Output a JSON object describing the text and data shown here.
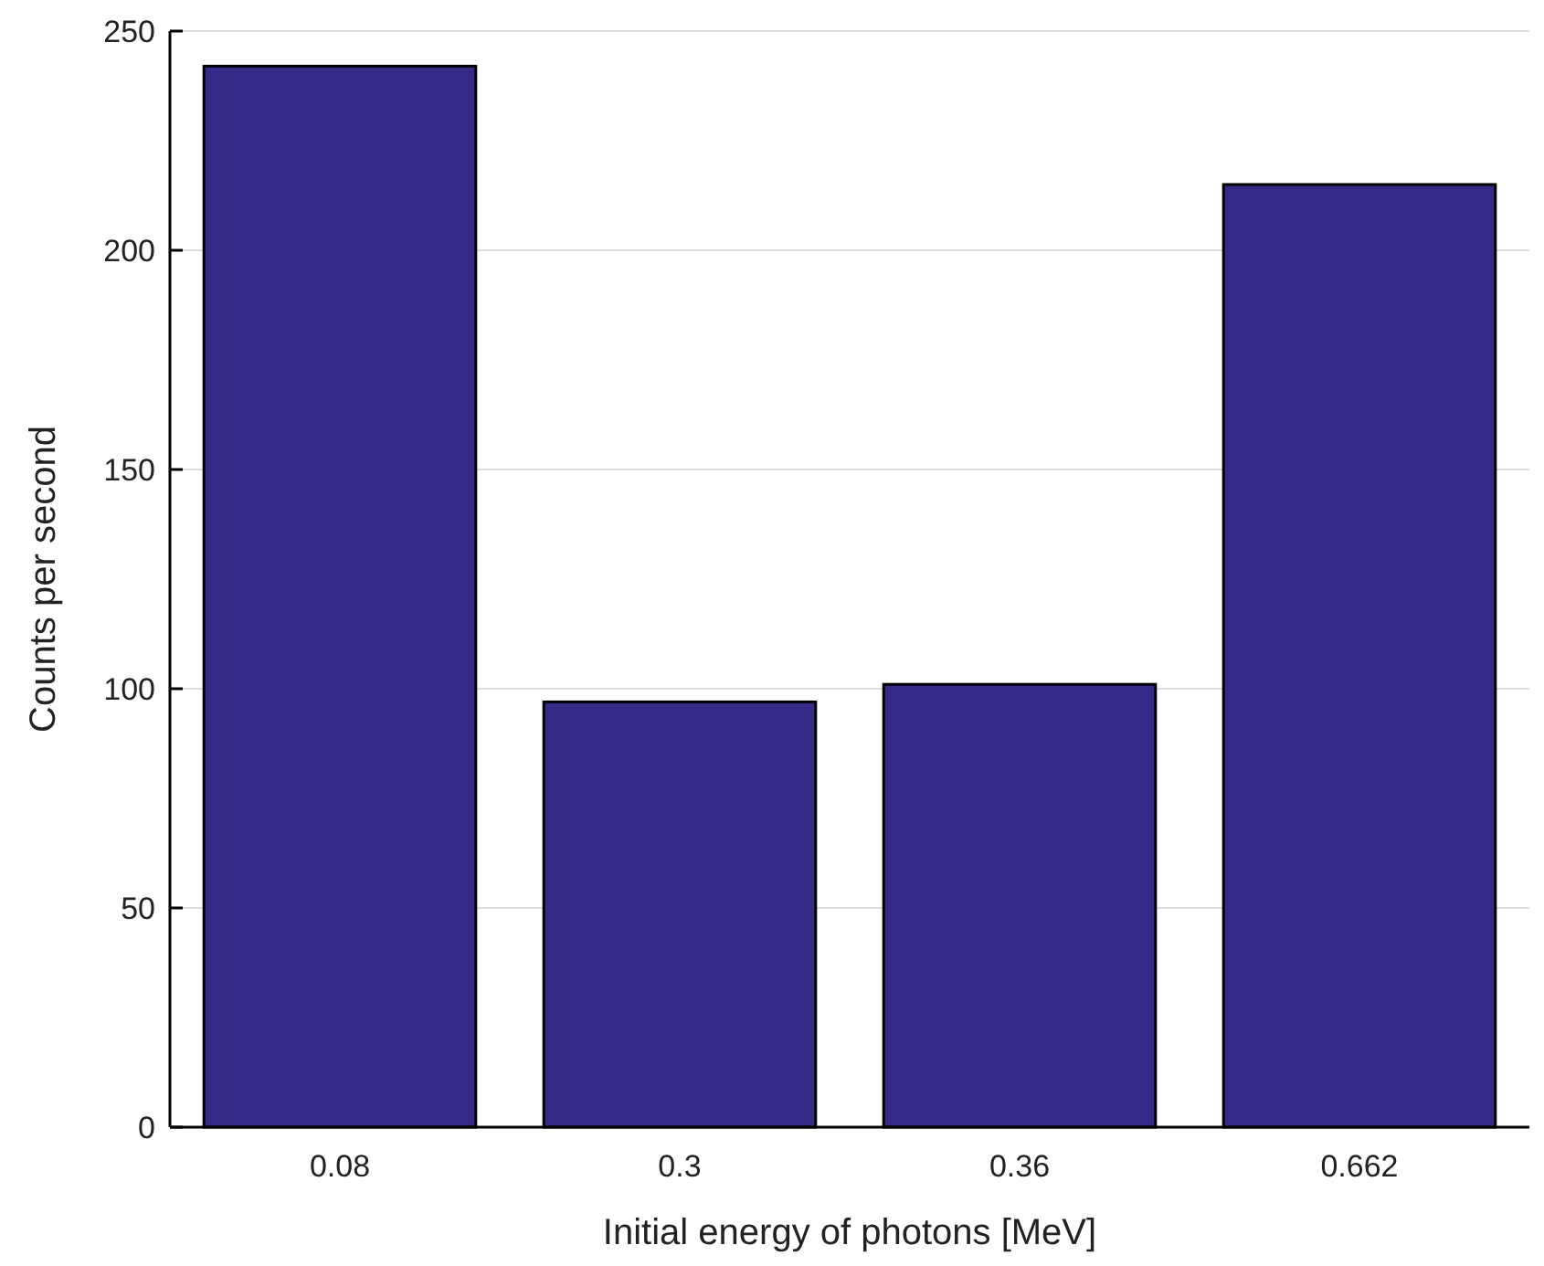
{
  "chart_data": {
    "type": "bar",
    "xlabel": "Initial energy of photons [MeV]",
    "ylabel": "Counts per second",
    "categories": [
      "0.08",
      "0.3",
      "0.36",
      "0.662"
    ],
    "values": [
      242,
      97,
      101,
      215
    ],
    "color": "#352a87",
    "ylim": [
      0,
      250
    ],
    "yticks": [
      0,
      50,
      100,
      150,
      200,
      250
    ],
    "grid": "y"
  }
}
